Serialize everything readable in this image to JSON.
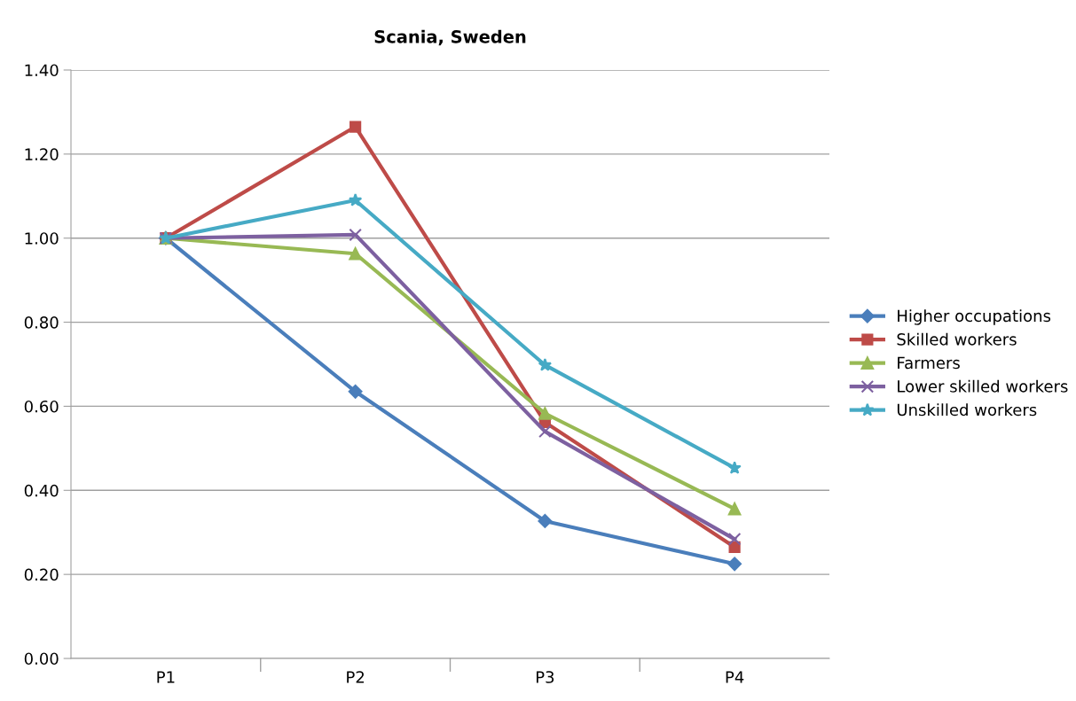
{
  "chart_data": {
    "type": "line",
    "title": "Scania, Sweden",
    "categories": [
      "P1",
      "P2",
      "P3",
      "P4"
    ],
    "series": [
      {
        "name": "Higher occupations",
        "color": "#4a7ebb",
        "marker": "diamond",
        "values": [
          1.0,
          0.635,
          0.327,
          0.225
        ]
      },
      {
        "name": "Skilled workers",
        "color": "#be4b48",
        "marker": "square",
        "values": [
          1.0,
          1.265,
          0.562,
          0.265
        ]
      },
      {
        "name": "Farmers",
        "color": "#98b954",
        "marker": "triangle",
        "values": [
          1.0,
          0.963,
          0.583,
          0.356
        ]
      },
      {
        "name": "Lower skilled workers",
        "color": "#7d60a0",
        "marker": "cross",
        "values": [
          1.0,
          1.008,
          0.54,
          0.284
        ]
      },
      {
        "name": "Unskilled workers",
        "color": "#46aac5",
        "marker": "star",
        "values": [
          1.0,
          1.09,
          0.698,
          0.453
        ]
      }
    ],
    "ylim": [
      0,
      1.4
    ],
    "yticks": [
      {
        "value": 0,
        "label": "0.00"
      },
      {
        "value": 0.2,
        "label": "0.20"
      },
      {
        "value": 0.4,
        "label": "0.40"
      },
      {
        "value": 0.6,
        "label": "0.60"
      },
      {
        "value": 0.8,
        "label": "0.80"
      },
      {
        "value": 1.0,
        "label": "1.00"
      },
      {
        "value": 1.2,
        "label": "1.20"
      },
      {
        "value": 1.4,
        "label": "1.40"
      }
    ],
    "grid": "y",
    "legend": "right",
    "line_style": "solid"
  }
}
